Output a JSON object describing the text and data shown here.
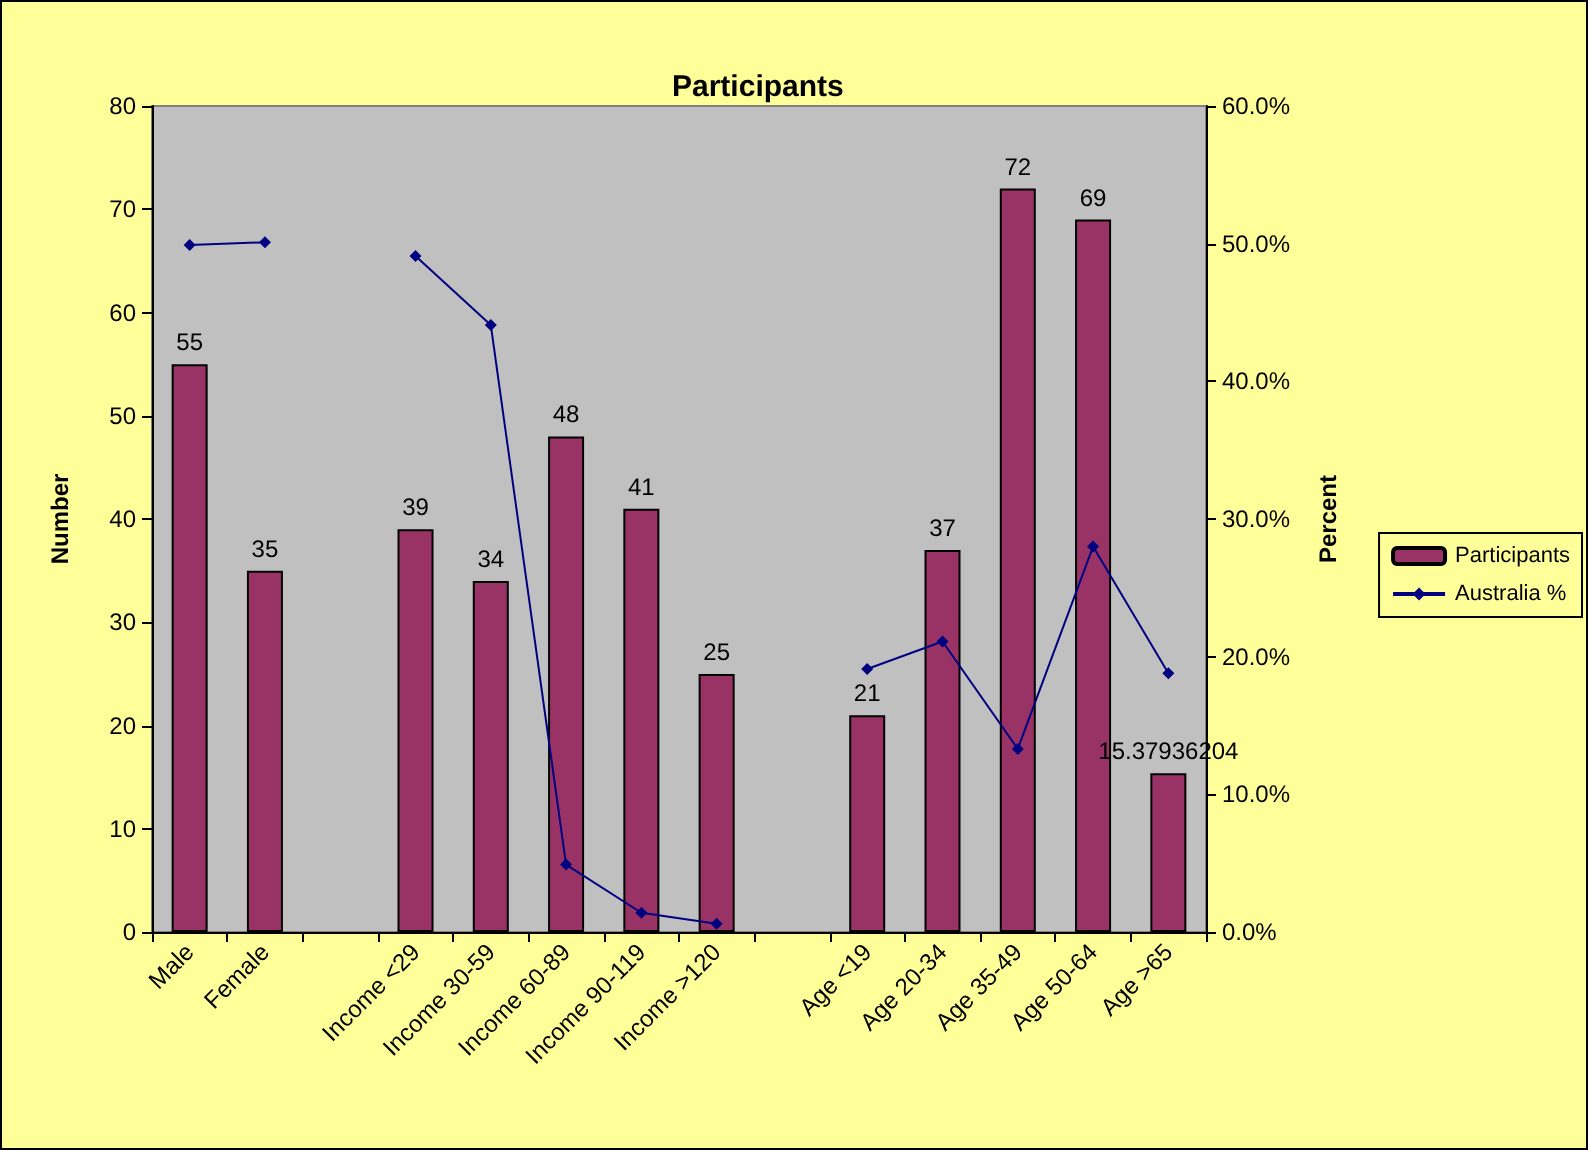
{
  "chart_data": {
    "type": "bar",
    "title": "Participants",
    "ylabel": "Number",
    "y2label": "Percent",
    "categories": [
      "Male",
      "Female",
      null,
      "Income <29",
      "Income 30-59",
      "Income 60-89",
      "Income 90-119",
      "Income >120",
      null,
      "Age <19",
      "Age 20-34",
      "Age 35-49",
      "Age 50-64",
      "Age >65"
    ],
    "series": [
      {
        "name": "Participants",
        "color": "#993366",
        "values": [
          55,
          35,
          null,
          39,
          34,
          48,
          41,
          25,
          null,
          21,
          37,
          72,
          69,
          15.37936204
        ],
        "value_labels": [
          "55",
          "35",
          null,
          "39",
          "34",
          "48",
          "41",
          "25",
          null,
          "21",
          "37",
          "72",
          "69",
          "15.37936204"
        ]
      },
      {
        "name": "Australia %",
        "type": "line",
        "axis": "y2",
        "color": "#000080",
        "marker": "diamond",
        "values": [
          49.9,
          50.1,
          null,
          49.1,
          44.1,
          4.9,
          1.4,
          0.6,
          null,
          19.1,
          21.1,
          13.3,
          28.0,
          18.8
        ]
      }
    ],
    "ylim": [
      0,
      80
    ],
    "yticks": [
      0,
      10,
      20,
      30,
      40,
      50,
      60,
      70,
      80
    ],
    "y2lim": [
      0,
      60
    ],
    "y2ticks": [
      {
        "value": 0,
        "label": "0.0%"
      },
      {
        "value": 10,
        "label": "10.0%"
      },
      {
        "value": 20,
        "label": "20.0%"
      },
      {
        "value": 30,
        "label": "30.0%"
      },
      {
        "value": 40,
        "label": "40.0%"
      },
      {
        "value": 50,
        "label": "50.0%"
      },
      {
        "value": 60,
        "label": "60.0%"
      }
    ],
    "grid": false,
    "legend": "right"
  }
}
